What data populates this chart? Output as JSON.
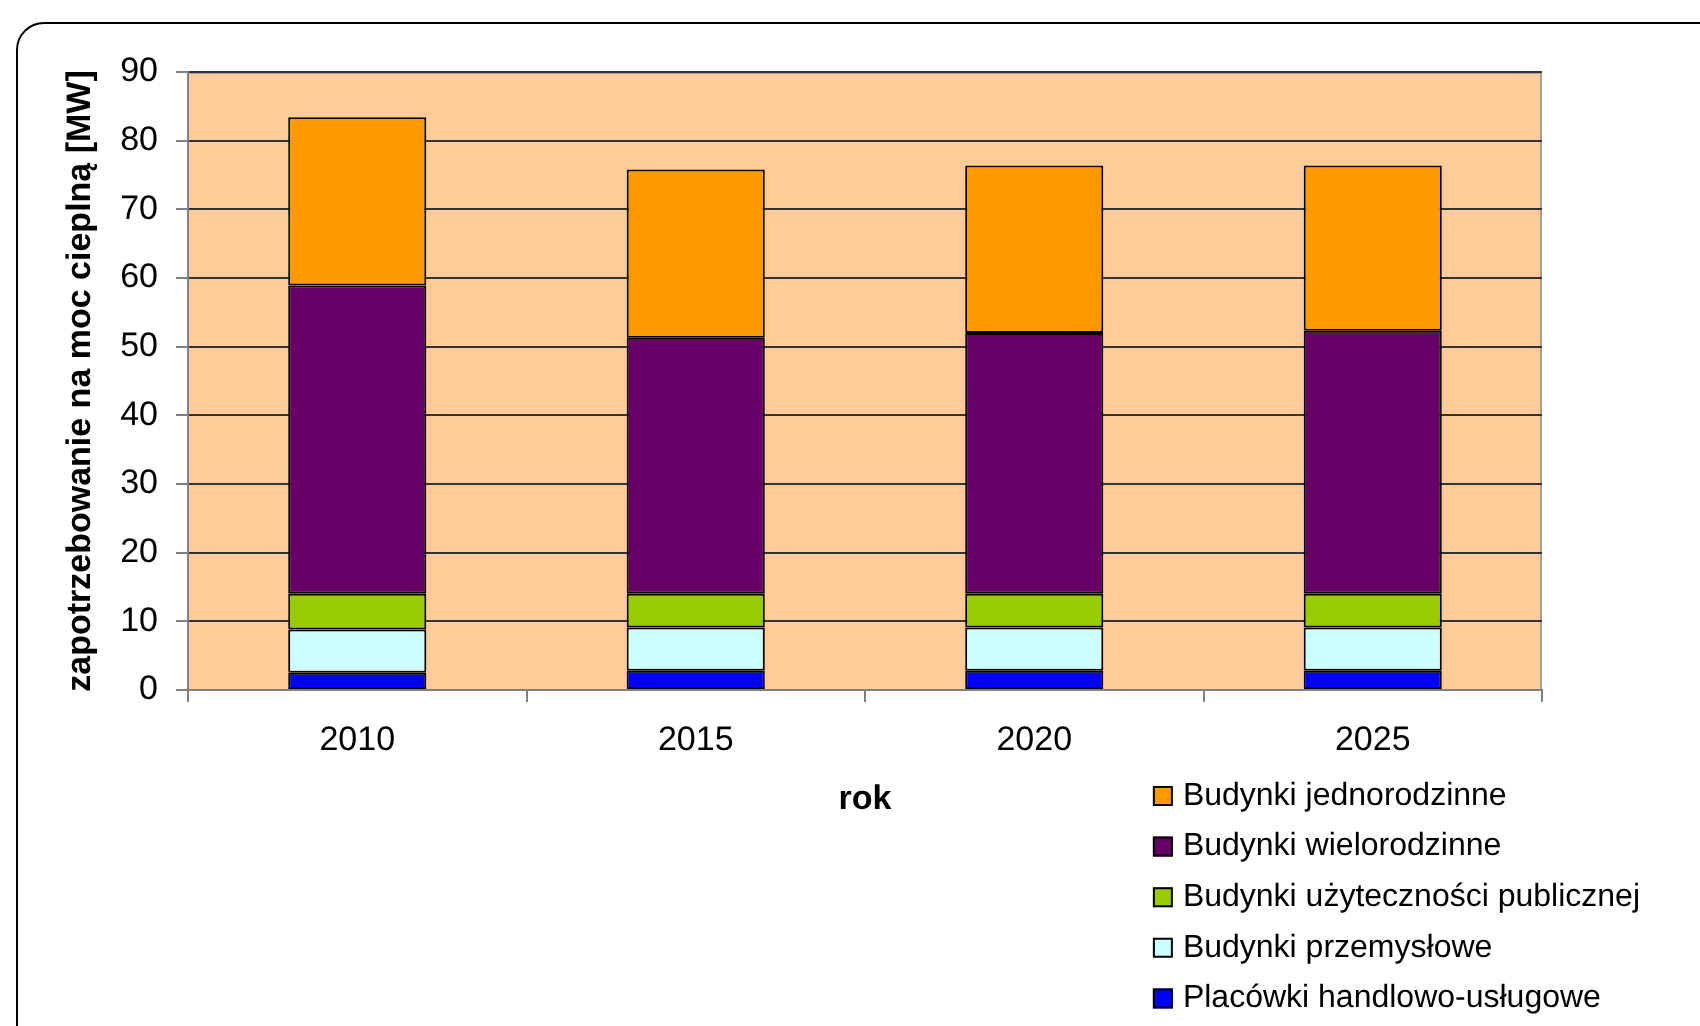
{
  "chart_data": {
    "type": "bar",
    "stacked": true,
    "xlabel": "rok",
    "ylabel": "zapotrzebowanie na moc cieplną [MW]",
    "categories": [
      "2010",
      "2015",
      "2020",
      "2025"
    ],
    "series": [
      {
        "name": "Placówki handlowo-usługowe",
        "color": "#0000ff",
        "values": [
          2.5,
          2.8,
          2.8,
          2.8
        ]
      },
      {
        "name": "Budynki przemysłowe",
        "color": "#ccffff",
        "values": [
          6.3,
          6.3,
          6.3,
          6.3
        ]
      },
      {
        "name": "Budynki użyteczności publicznej",
        "color": "#99cc00",
        "values": [
          5.2,
          4.9,
          4.9,
          4.9
        ]
      },
      {
        "name": "Budynki wielorodzinne",
        "color": "#660066",
        "values": [
          44.9,
          37.3,
          38.0,
          38.3
        ]
      },
      {
        "name": "Budynki jednorodzinne",
        "color": "#ff9900",
        "values": [
          24.5,
          24.5,
          24.4,
          24.1
        ]
      }
    ],
    "ylim": [
      0,
      90
    ],
    "yticks": [
      0,
      10,
      20,
      30,
      40,
      50,
      60,
      70,
      80,
      90
    ],
    "grid": "y",
    "legend": "bottom right"
  }
}
